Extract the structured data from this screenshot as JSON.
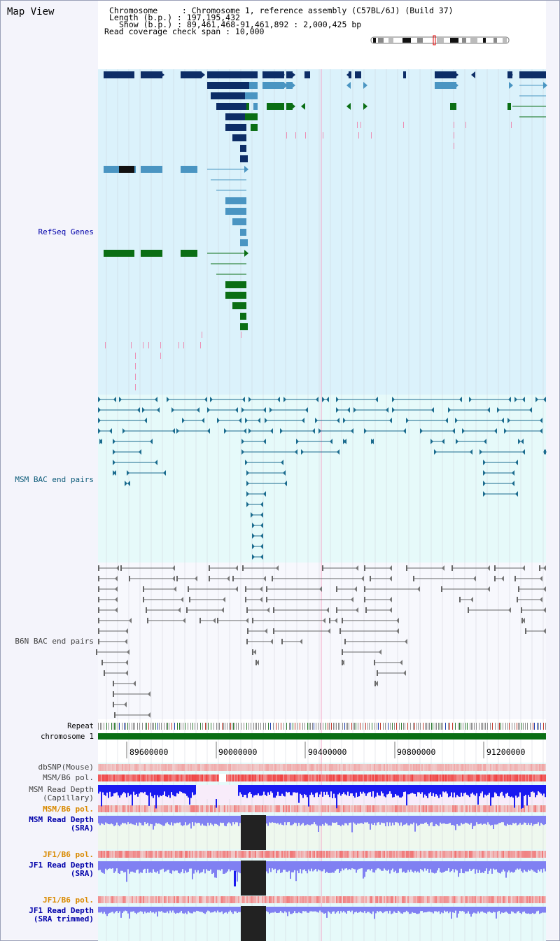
{
  "panel_title": "Map View",
  "header": {
    "line_chromosome": "Chromosome     : Chromosome 1, reference assembly (C57BL/6J) (Build 37)",
    "line_length": "Length (b.p.) : 197,195,432",
    "line_show": "Show (b.p.) : 89,461,468-91,461,892 : 2,000,425 bp",
    "line_span": "Read coverage check span : 10,000"
  },
  "tracks": {
    "refseq": "RefSeq Genes",
    "msm_bac": "MSM BAC end pairs",
    "b6n_bac": "B6N BAC end pairs",
    "repeat": "Repeat",
    "chromosome": "chromosome 1",
    "dbsnp": "dbSNP(Mouse)",
    "msm_b6_pol": "MSM/B6 pol.",
    "msm_depth_cap_1": "MSM Read Depth",
    "msm_depth_cap_2": "(Capillary)",
    "msm_b6_pol_2": "MSM/B6 pol.",
    "msm_depth_sra_1": "MSM Read Depth",
    "msm_depth_sra_2": "(SRA)",
    "jf1_b6_pol": "JF1/B6 pol.",
    "jf1_depth_sra_1": "JF1 Read Depth",
    "jf1_depth_sra_2": "(SRA)",
    "jf1_b6_pol_2": "JF1/B6 pol.",
    "jf1_depth_trim_1": "JF1 Read Depth",
    "jf1_depth_trim_2": "(SRA trimmed)"
  },
  "axis": {
    "ticks": [
      "89600000",
      "90000000",
      "90400000",
      "90800000",
      "91200000"
    ]
  },
  "colors": {
    "refseq_bg": "#dbf2fb",
    "bac_bg": "#e6fafa",
    "b6n_bg": "#f7f8fd",
    "gene_dark": "#0d2d66",
    "gene_mid": "#4a95c2",
    "gene_green": "#0a6e14",
    "chromosome_bar": "#0a6e14",
    "label_blue": "#0000aa",
    "label_teal": "#0e5c7a",
    "label_gray": "#444444",
    "label_orange": "#d98a00",
    "depth_blue": "#1a1af0",
    "depth_light": "#8080f2"
  }
}
